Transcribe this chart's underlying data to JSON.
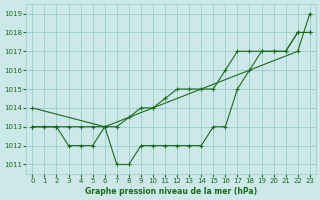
{
  "xlabel": "Graphe pression niveau de la mer (hPa)",
  "ylabel": "",
  "bg_color": "#cce8e8",
  "grid_color": "#99cccc",
  "line_color": "#1a6b1a",
  "ylim": [
    1010.5,
    1019.5
  ],
  "xlim": [
    -0.5,
    23.5
  ],
  "yticks": [
    1011,
    1012,
    1013,
    1014,
    1015,
    1016,
    1017,
    1018,
    1019
  ],
  "xticks": [
    0,
    1,
    2,
    3,
    4,
    5,
    6,
    7,
    8,
    9,
    10,
    11,
    12,
    13,
    14,
    15,
    16,
    17,
    18,
    19,
    20,
    21,
    22,
    23
  ],
  "series1_x": [
    0,
    1,
    2,
    3,
    4,
    5,
    6,
    7,
    8,
    9,
    10,
    11,
    12,
    13,
    14,
    15,
    16,
    17,
    18,
    19,
    20,
    21,
    22,
    23
  ],
  "series1_y": [
    1013,
    1013,
    1013,
    1012,
    1012,
    1012,
    1013,
    1011,
    1011,
    1012,
    1012,
    1012,
    1012,
    1012,
    1012,
    1013,
    1013,
    1015,
    1016,
    1017,
    1017,
    1017,
    1018,
    1018
  ],
  "series2_x": [
    0,
    1,
    2,
    3,
    4,
    5,
    6,
    7,
    8,
    9,
    10,
    11,
    12,
    13,
    14,
    15,
    16,
    17,
    18,
    19,
    20,
    21,
    22,
    23
  ],
  "series2_y": [
    1013,
    1013,
    1013,
    1013,
    1013,
    1013,
    1013,
    1013,
    1013.5,
    1014,
    1014,
    1014.5,
    1015,
    1015,
    1015,
    1015,
    1016,
    1017,
    1017,
    1017,
    1017,
    1017,
    1018,
    1018
  ],
  "series3_x": [
    0,
    6,
    22,
    23
  ],
  "series3_y": [
    1014,
    1013,
    1017,
    1019
  ]
}
